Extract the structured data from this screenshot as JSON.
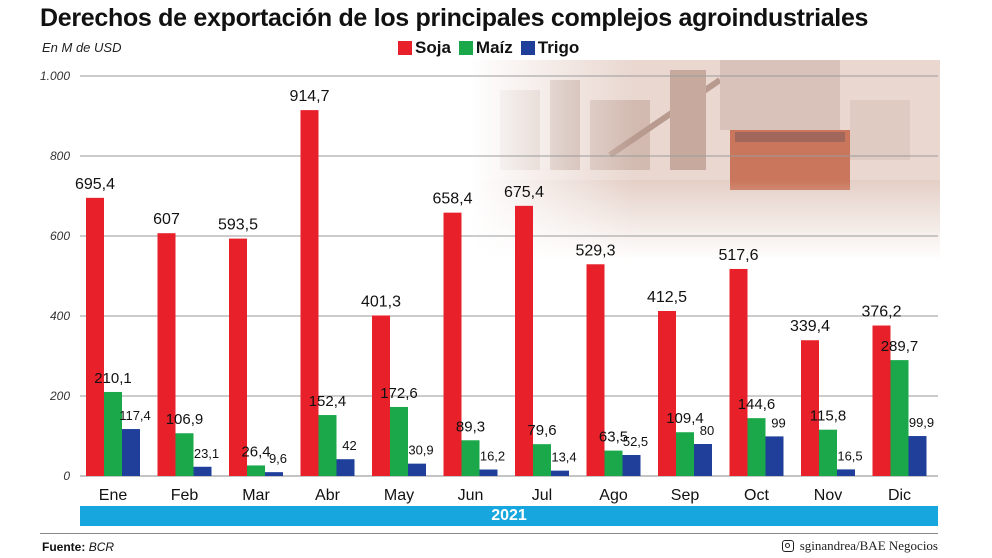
{
  "title": "Derechos de exportación de los principales complejos agroindustriales",
  "unit_label": "En M de USD",
  "legend": [
    {
      "name": "Soja",
      "color": "#e8202a"
    },
    {
      "name": "Maíz",
      "color": "#1aa84a"
    },
    {
      "name": "Trigo",
      "color": "#1f3f9a"
    }
  ],
  "year_label": "2021",
  "source_label": "Fuente:",
  "source_value": "BCR",
  "credit": "sginandrea/BAE Negocios",
  "photo_icon": "port-ship-photo",
  "chart_data": {
    "type": "bar",
    "categories": [
      "Ene",
      "Feb",
      "Mar",
      "Abr",
      "May",
      "Jun",
      "Jul",
      "Ago",
      "Sep",
      "Oct",
      "Nov",
      "Dic"
    ],
    "series": [
      {
        "name": "Soja",
        "color": "#e8202a",
        "values": [
          695.4,
          607,
          593.5,
          914.7,
          401.3,
          658.4,
          675.4,
          529.3,
          412.5,
          517.6,
          339.4,
          376.2
        ],
        "labels": [
          "695,4",
          "607",
          "593,5",
          "914,7",
          "401,3",
          "658,4",
          "675,4",
          "529,3",
          "412,5",
          "517,6",
          "339,4",
          "376,2"
        ]
      },
      {
        "name": "Maíz",
        "color": "#1aa84a",
        "values": [
          210.1,
          106.9,
          26.4,
          152.4,
          172.6,
          89.3,
          79.6,
          63.5,
          109.4,
          144.6,
          115.8,
          289.7
        ],
        "labels": [
          "210,1",
          "106,9",
          "26,4",
          "152,4",
          "172,6",
          "89,3",
          "79,6",
          "63,5",
          "109,4",
          "144,6",
          "115,8",
          "289,7"
        ]
      },
      {
        "name": "Trigo",
        "color": "#1f3f9a",
        "values": [
          117.4,
          23.1,
          9.6,
          42,
          30.9,
          16.2,
          13.4,
          52.5,
          80,
          99,
          16.5,
          99.9
        ],
        "labels": [
          "117,4",
          "23,1",
          "9,6",
          "42",
          "30,9",
          "16,2",
          "13,4",
          "52,5",
          "80",
          "99",
          "16,5",
          "99,9"
        ]
      }
    ],
    "ylim": [
      0,
      1000
    ],
    "yticks": [
      0,
      200,
      400,
      600,
      800,
      1000
    ],
    "ytick_labels": [
      "0",
      "200",
      "400",
      "600",
      "800",
      "1.000"
    ],
    "grid": true,
    "legend_position": "top-center"
  }
}
